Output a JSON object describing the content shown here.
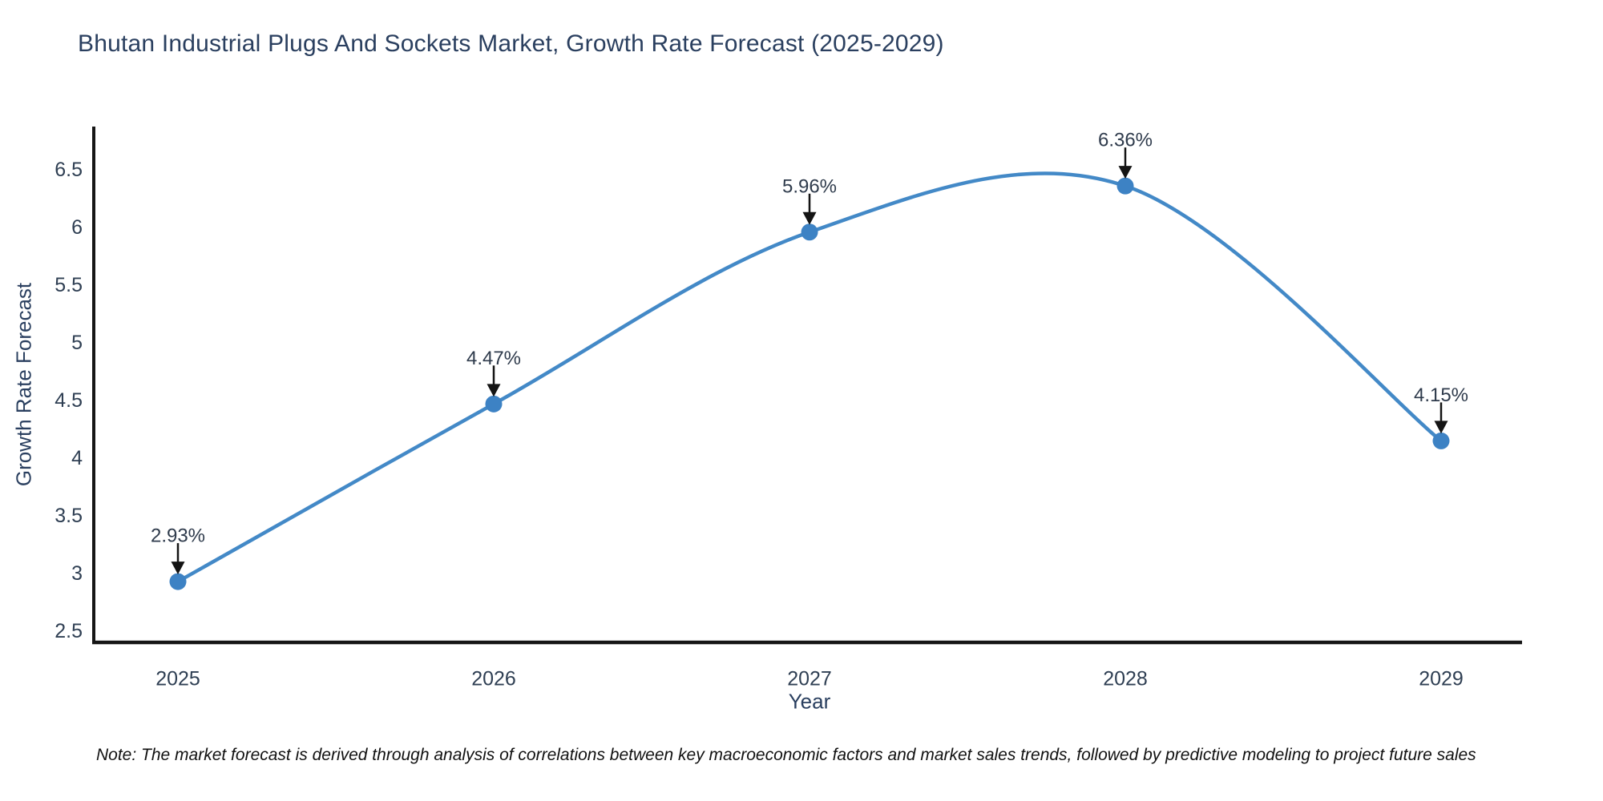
{
  "chart": {
    "title": "Bhutan Industrial Plugs And Sockets Market, Growth Rate Forecast (2025-2029)"
  },
  "chart_data": {
    "type": "line",
    "title": "Bhutan Industrial Plugs And Sockets Market, Growth Rate Forecast (2025-2029)",
    "xlabel": "Year",
    "ylabel": "Growth Rate Forecast",
    "x": [
      2025,
      2026,
      2027,
      2028,
      2029
    ],
    "y": [
      2.93,
      4.47,
      5.96,
      6.36,
      4.15
    ],
    "point_labels": [
      "2.93%",
      "4.47%",
      "5.96%",
      "6.36%",
      "4.15%"
    ],
    "yticks": [
      2.5,
      3,
      3.5,
      4,
      4.5,
      5,
      5.5,
      6,
      6.5
    ],
    "ylim": [
      2.4,
      6.9
    ],
    "line_shape": "spline",
    "grid": false,
    "legend_position": "none",
    "colors": {
      "line": "#4389c7",
      "marker": "#3d82c4",
      "axis": "#161616",
      "tick_text": "#2f3f53",
      "annotation_text": "#2f3b4c",
      "annotation_arrow": "#141414",
      "title_text": "#2a3f5f"
    }
  },
  "note": {
    "text": "Note: The market forecast is derived through analysis of correlations between key macroeconomic factors and market sales trends, followed by predictive modeling to project future sales"
  }
}
